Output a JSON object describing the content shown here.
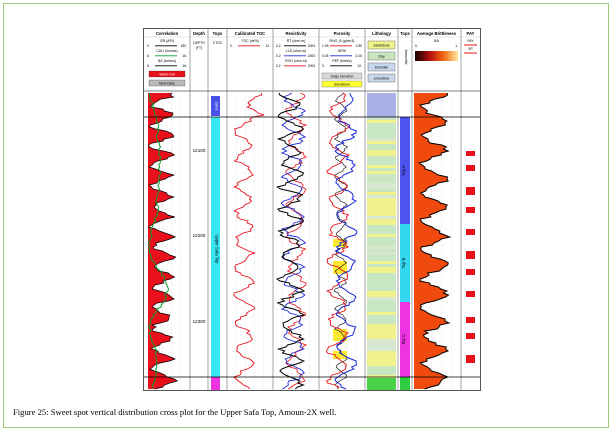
{
  "figure": {
    "caption": "Figure 25: Sweet spot vertical distribution cross plot for the Upper Safa Top, Amoun-2X well."
  },
  "tracks": {
    "correlation": {
      "title": "Correlation",
      "curves": [
        {
          "name": "GR (API)",
          "min": "0.",
          "max": "150."
        },
        {
          "name": "CALI (inches)",
          "min": "6.",
          "max": "16."
        },
        {
          "name": "BS (inches)",
          "min": "6.",
          "max": "16."
        }
      ],
      "fills": [
        {
          "label": "Wash-Out",
          "color": "#e8101a"
        },
        {
          "label": "Mud-Cake",
          "color": "#b9b9b9"
        }
      ]
    },
    "depth": {
      "title": "Depth",
      "unit_line1": "DEPTH",
      "unit_line2": "(FT)",
      "ticks": [
        "12100",
        "12200",
        "12300"
      ]
    },
    "tops": {
      "title": "Tops",
      "sub": "CTOC",
      "zone_label": "Upper Safa Top",
      "cap_label": "Zahra"
    },
    "toc": {
      "title": "Calibrated TOC",
      "curve": "TOC (wt%)",
      "min": "0.",
      "max": "12."
    },
    "resistivity": {
      "title": "Resistivity",
      "curves": [
        {
          "name": "RT (ohm.m)",
          "min": "0.2",
          "max": "2000."
        },
        {
          "name": "LLS (ohm.m)",
          "min": "0.2",
          "max": "2000."
        },
        {
          "name": "RXO (ohm.m)",
          "min": "0.2",
          "max": "2000."
        }
      ]
    },
    "porosity": {
      "title": "Porosity",
      "curves": [
        {
          "name": "RHO_B (g/cm3)",
          "min": "1.95",
          "max": "2.95"
        },
        {
          "name": "NPHI",
          "min": "0.45",
          "max": "-0.15"
        },
        {
          "name": "PEF (b/elec)",
          "min": "0.",
          "max": "10."
        }
      ],
      "fills": [
        {
          "label": "Shaly formation",
          "color": "#d9d9d9"
        },
        {
          "label": "Sandstone",
          "color": "#ffff33"
        }
      ]
    },
    "lithology": {
      "title": "Lithology",
      "items": [
        {
          "label": "Sandstone",
          "color": "#f2f28c"
        },
        {
          "label": "Clay",
          "color": "#c9e6c2"
        },
        {
          "label": "Dolomite",
          "color": "#c6d8ee"
        },
        {
          "label": "Limestone",
          "color": "#c8d7ea"
        }
      ]
    },
    "tops2": {
      "title": "Tops",
      "vertical_label": "Amoun6bl",
      "zones": [
        {
          "label": "Top A",
          "color": "#4d52f0"
        },
        {
          "label": "Top B",
          "color": "#33d8f0"
        },
        {
          "label": "Top C",
          "color": "#ee33e0"
        }
      ]
    },
    "brittleness": {
      "title": "Average Brittleness",
      "curve": "BA",
      "min": "0.",
      "max": "1."
    },
    "pay": {
      "title": "PAY",
      "sub1": "PAY",
      "sub2": "SP"
    }
  },
  "colors": {
    "gr": "#000000",
    "cali": "#0a9e2d",
    "fill_washout": "#e8101a",
    "toc": "#e8101a",
    "rt": "#000000",
    "lls": "#1a2ad8",
    "rxo": "#e8101a",
    "rhob": "#e8101a",
    "nphi": "#1a2ad8",
    "pef": "#000000",
    "sand": "#ffe51a",
    "ba": "#000000",
    "ba_fill": "#f04a0f",
    "pay": "#e8101a"
  }
}
